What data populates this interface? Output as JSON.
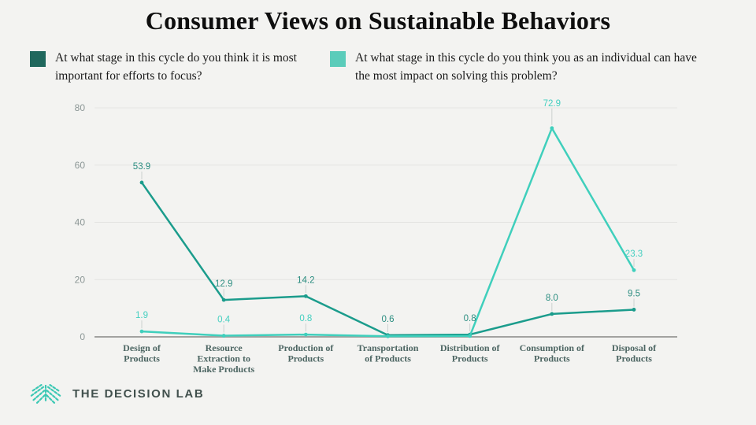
{
  "title": "Consumer Views on Sustainable Behaviors",
  "logo": {
    "text": "THE DECISION LAB"
  },
  "colors": {
    "background": "#f3f3f1",
    "grid": "#e4e4e2",
    "axis": "#a2a2a0",
    "tick_text": "#8b9695",
    "category_text": "#4d6663",
    "leader": "#cbd1d0",
    "logo_icon": "#3cc8b4",
    "logo_text": "#41504d"
  },
  "chart_data": {
    "type": "line",
    "title": "Consumer Views on Sustainable Behaviors",
    "categories": [
      "Design of Products",
      "Resource Extraction to Make Products",
      "Production of Products",
      "Transportation of Products",
      "Distribution of Products",
      "Consumption of Products",
      "Disposal of Products"
    ],
    "series": [
      {
        "name": "At what stage in this cycle do you think it is most important for efforts to focus?",
        "color": "#1b9c8c",
        "swatch": "#20685d",
        "label_color": "#2b8d80",
        "values": [
          53.9,
          12.9,
          14.2,
          0.6,
          0.8,
          8.0,
          9.5
        ],
        "labels": [
          "53.9",
          "12.9",
          "14.2",
          "0.6",
          "0.8",
          "8.0",
          "9.5"
        ]
      },
      {
        "name": "At what stage in this cycle do you think you as an individual can have the most impact on solving this problem?",
        "color": "#3fcfbc",
        "swatch": "#5bccba",
        "label_color": "#44cfc0",
        "values": [
          1.9,
          0.4,
          0.8,
          0.2,
          0.3,
          72.9,
          23.3
        ],
        "labels": [
          "1.9",
          "0.4",
          "0.8",
          "",
          "",
          "72.9",
          "23.3"
        ]
      }
    ],
    "yticks": [
      0,
      20,
      40,
      60,
      80
    ],
    "ylim": [
      0,
      80
    ],
    "xlabel": "",
    "ylabel": "",
    "grid": true,
    "legend_position": "top"
  }
}
